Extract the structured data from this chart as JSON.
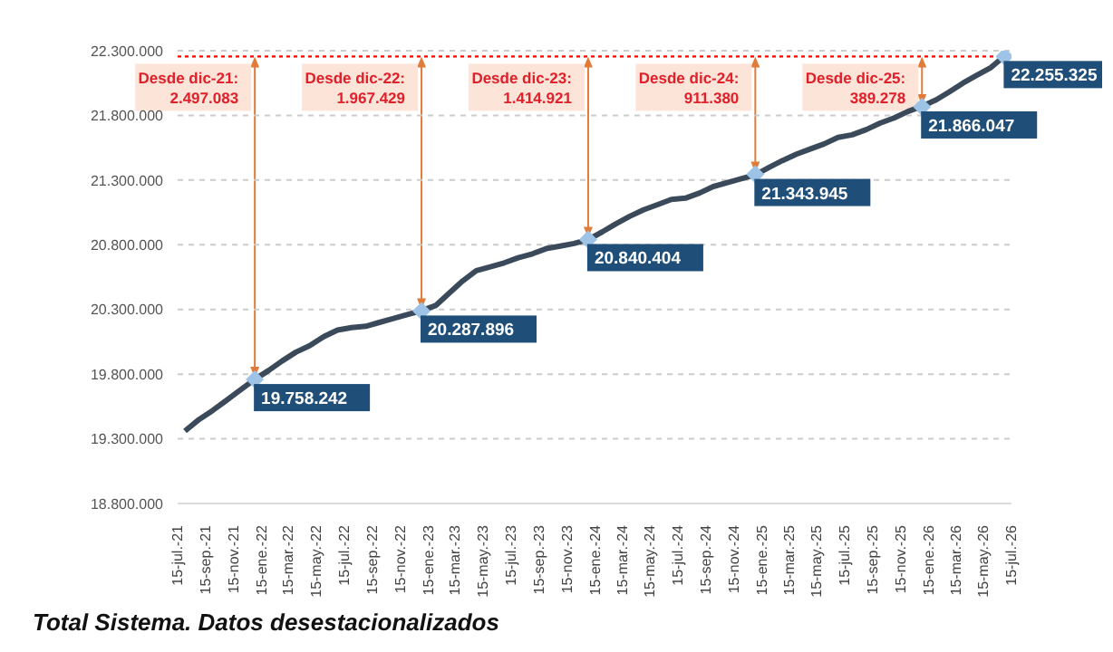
{
  "chart_data": {
    "type": "line",
    "title": "Total Sistema. Datos desestacionalizados",
    "xlim": [
      "2021-07-15",
      "2026-07-15"
    ],
    "xticks": [
      {
        "value": "2021-07-15",
        "label": "15-jul.-21"
      },
      {
        "value": "2021-09-15",
        "label": "15-sep.-21"
      },
      {
        "value": "2021-11-15",
        "label": "15-nov.-21"
      },
      {
        "value": "2022-01-15",
        "label": "15-ene.-22"
      },
      {
        "value": "2022-03-15",
        "label": "15-mar.-22"
      },
      {
        "value": "2022-05-15",
        "label": "15-may.-22"
      },
      {
        "value": "2022-07-15",
        "label": "15-jul.-22"
      },
      {
        "value": "2022-09-15",
        "label": "15-sep.-22"
      },
      {
        "value": "2022-11-15",
        "label": "15-nov.-22"
      },
      {
        "value": "2023-01-15",
        "label": "15-ene.-23"
      },
      {
        "value": "2023-03-15",
        "label": "15-mar.-23"
      },
      {
        "value": "2023-05-15",
        "label": "15-may.-23"
      },
      {
        "value": "2023-07-15",
        "label": "15-jul.-23"
      },
      {
        "value": "2023-09-15",
        "label": "15-sep.-23"
      },
      {
        "value": "2023-11-15",
        "label": "15-nov.-23"
      },
      {
        "value": "2024-01-15",
        "label": "15-ene.-24"
      },
      {
        "value": "2024-03-15",
        "label": "15-mar.-24"
      },
      {
        "value": "2024-05-15",
        "label": "15-may.-24"
      },
      {
        "value": "2024-07-15",
        "label": "15-jul.-24"
      },
      {
        "value": "2024-09-15",
        "label": "15-sep.-24"
      },
      {
        "value": "2024-11-15",
        "label": "15-nov.-24"
      },
      {
        "value": "2025-01-15",
        "label": "15-ene.-25"
      },
      {
        "value": "2025-03-15",
        "label": "15-mar.-25"
      },
      {
        "value": "2025-05-15",
        "label": "15-may.-25"
      },
      {
        "value": "2025-07-15",
        "label": "15-jul.-25"
      },
      {
        "value": "2025-09-15",
        "label": "15-sep.-25"
      },
      {
        "value": "2025-11-15",
        "label": "15-nov.-25"
      },
      {
        "value": "2026-01-15",
        "label": "15-ene.-26"
      },
      {
        "value": "2026-03-15",
        "label": "15-mar.-26"
      },
      {
        "value": "2026-05-15",
        "label": "15-may.-26"
      },
      {
        "value": "2026-07-15",
        "label": "15-jul.-26"
      }
    ],
    "ylim": [
      18800000,
      22300000
    ],
    "yticks": [
      {
        "value": 18800000,
        "label": "18.800.000"
      },
      {
        "value": 19300000,
        "label": "19.300.000"
      },
      {
        "value": 19800000,
        "label": "19.800.000"
      },
      {
        "value": 20300000,
        "label": "20.300.000"
      },
      {
        "value": 20800000,
        "label": "20.800.000"
      },
      {
        "value": 21300000,
        "label": "21.300.000"
      },
      {
        "value": 21800000,
        "label": "21.800.000"
      },
      {
        "value": 22300000,
        "label": "22.300.000"
      }
    ],
    "grid": "y",
    "line_style": "solid",
    "marker": "none",
    "series": [
      {
        "color": "#3b4a5a",
        "x": [
          "2021-07-31",
          "2021-08-31",
          "2021-09-30",
          "2021-10-31",
          "2021-11-30",
          "2021-12-31",
          "2022-01-31",
          "2022-02-28",
          "2022-03-31",
          "2022-04-30",
          "2022-05-31",
          "2022-06-30",
          "2022-07-31",
          "2022-08-31",
          "2022-09-30",
          "2022-10-31",
          "2022-11-30",
          "2022-12-31",
          "2023-01-31",
          "2023-02-28",
          "2023-03-31",
          "2023-04-30",
          "2023-05-31",
          "2023-06-30",
          "2023-07-31",
          "2023-08-31",
          "2023-09-30",
          "2023-10-31",
          "2023-11-30",
          "2023-12-31",
          "2024-01-31",
          "2024-02-29",
          "2024-03-31",
          "2024-04-30",
          "2024-05-31",
          "2024-06-30",
          "2024-07-31",
          "2024-08-31",
          "2024-09-30",
          "2024-10-31",
          "2024-11-30",
          "2024-12-31",
          "2025-01-31",
          "2025-02-28",
          "2025-03-31",
          "2025-04-30",
          "2025-05-31",
          "2025-06-30",
          "2025-07-31",
          "2025-08-31",
          "2025-09-30",
          "2025-10-31",
          "2025-11-30",
          "2025-12-31",
          "2026-01-31",
          "2026-02-28",
          "2026-03-31",
          "2026-04-30",
          "2026-05-31",
          "2026-06-30"
        ],
        "values": [
          19360000,
          19450000,
          19520000,
          19600000,
          19680000,
          19760000,
          19830000,
          19900000,
          19970000,
          20020000,
          20090000,
          20140000,
          20160000,
          20170000,
          20200000,
          20230000,
          20260000,
          20290000,
          20330000,
          20420000,
          20520000,
          20600000,
          20630000,
          20660000,
          20700000,
          20730000,
          20770000,
          20790000,
          20810000,
          20840000,
          20900000,
          20960000,
          21020000,
          21070000,
          21110000,
          21150000,
          21160000,
          21200000,
          21250000,
          21280000,
          21310000,
          21340000,
          21400000,
          21450000,
          21500000,
          21540000,
          21580000,
          21630000,
          21650000,
          21690000,
          21740000,
          21780000,
          21830000,
          21870000,
          21920000,
          21980000,
          22050000,
          22110000,
          22170000,
          22260000
        ]
      },
      {
        "type": "scatter",
        "marker": "diamond",
        "color": "#9dc3e6",
        "x": [
          "2021-12-31",
          "2022-12-31",
          "2023-12-31",
          "2024-12-31",
          "2025-12-31",
          "2026-06-30"
        ],
        "values": [
          19758242,
          20287896,
          20840404,
          21343945,
          21866047,
          22255325
        ],
        "value_labels": [
          "19.758.242",
          "20.287.896",
          "20.840.404",
          "21.343.945",
          "21.866.047",
          "22.255.325"
        ]
      }
    ],
    "ref_lines": [
      {
        "axis": "y",
        "value": 22255325,
        "color": "#ff0000",
        "line_style": "dotted"
      }
    ],
    "annotations": [
      {
        "text": "Desde dic-21:\n2.497.083",
        "x": "2021-12-31",
        "y": 19758242
      },
      {
        "text": "Desde dic-22:\n1.967.429",
        "x": "2022-12-31",
        "y": 20287896
      },
      {
        "text": "Desde dic-23:\n1.414.921",
        "x": "2023-12-31",
        "y": 20840404
      },
      {
        "text": "Desde dic-24:\n911.380",
        "x": "2024-12-31",
        "y": 21343945
      },
      {
        "text": "Desde dic-25:\n389.278",
        "x": "2025-12-31",
        "y": 21866047
      }
    ]
  }
}
